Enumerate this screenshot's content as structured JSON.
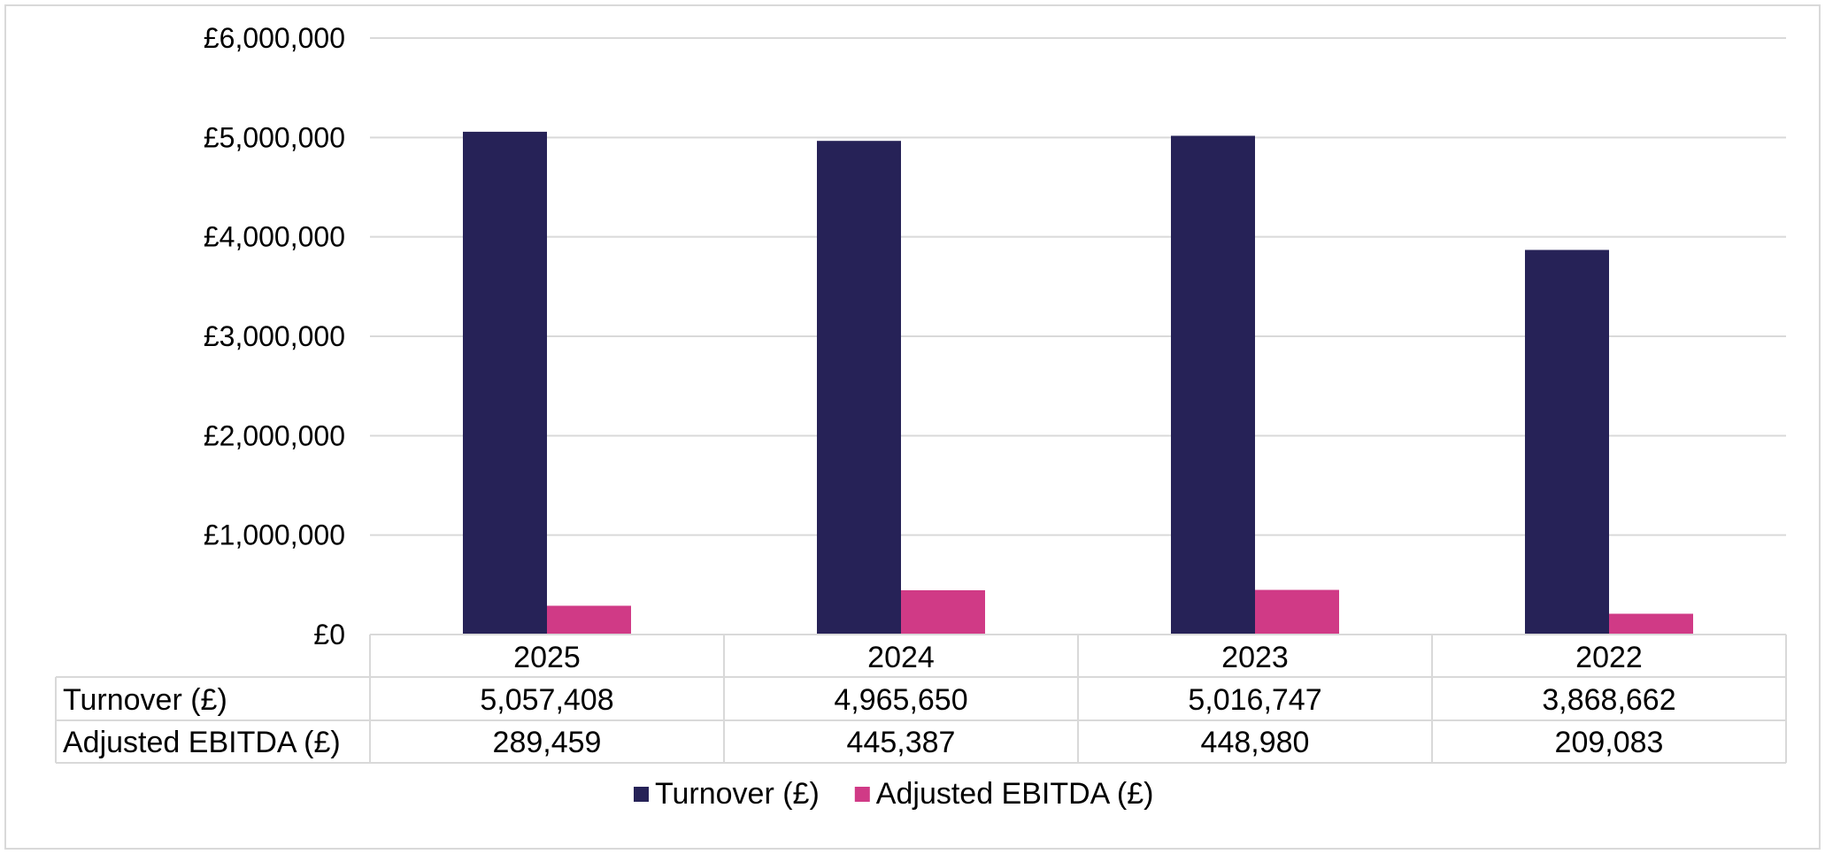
{
  "chart_data": {
    "type": "bar",
    "categories": [
      "2025",
      "2024",
      "2023",
      "2022"
    ],
    "series": [
      {
        "name": "Turnover (£)",
        "values": [
          5057408,
          4965650,
          5016747,
          3868662
        ],
        "display": [
          "5,057,408",
          "4,965,650",
          "5,016,747",
          "3,868,662"
        ],
        "color": "#262257"
      },
      {
        "name": "Adjusted EBITDA (£)",
        "values": [
          289459,
          445387,
          448980,
          209083
        ],
        "display": [
          "289,459",
          "445,387",
          "448,980",
          "209,083"
        ],
        "color": "#d03a86"
      }
    ],
    "ylim": [
      0,
      6000000
    ],
    "yticks": [
      0,
      1000000,
      2000000,
      3000000,
      4000000,
      5000000,
      6000000
    ],
    "ytick_labels": [
      "£0",
      "£1,000,000",
      "£2,000,000",
      "£3,000,000",
      "£4,000,000",
      "£5,000,000",
      "£6,000,000"
    ],
    "grid": true,
    "legend_position": "bottom",
    "data_table": true
  }
}
